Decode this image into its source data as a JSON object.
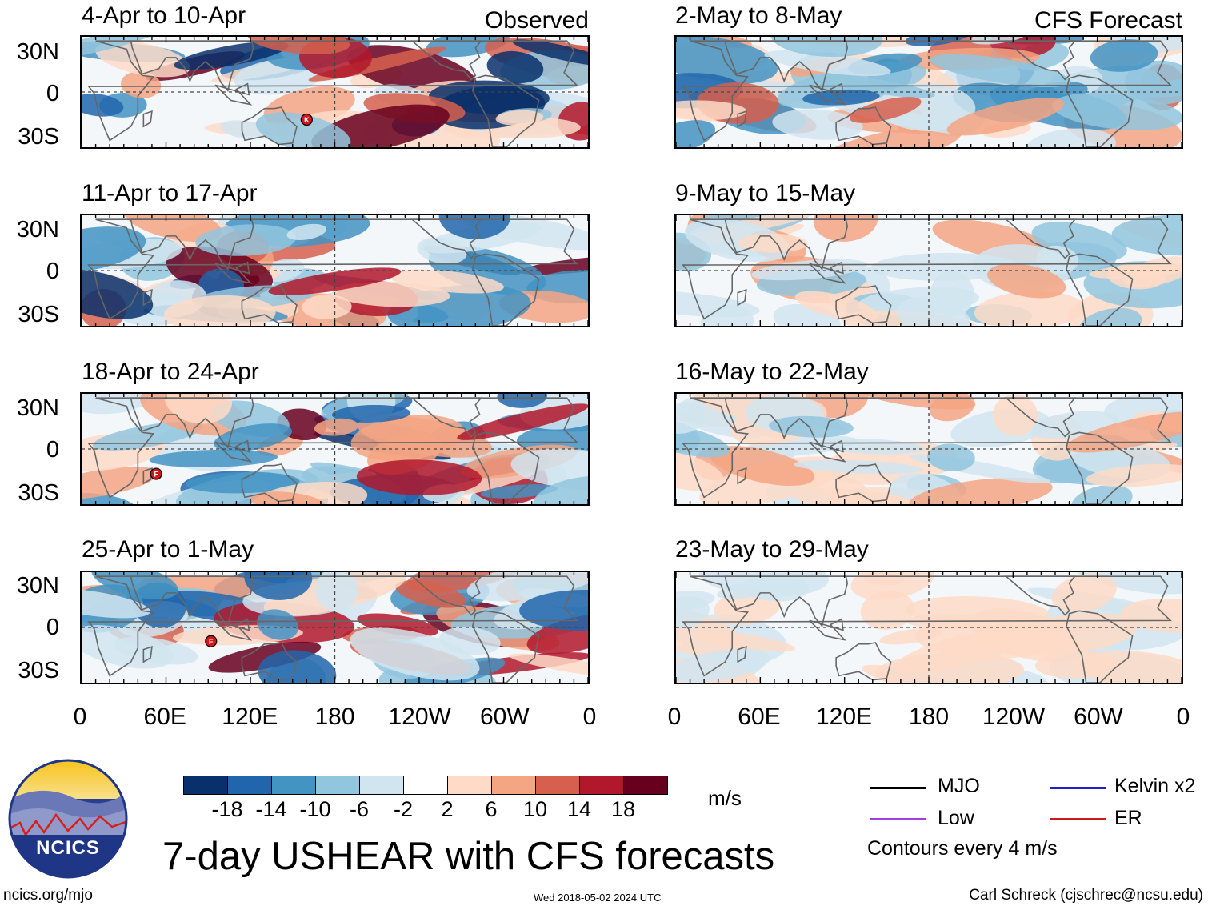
{
  "chart_data": {
    "type": "heatmap",
    "title": "7-day USHEAR with CFS forecasts",
    "variable": "USHEAR",
    "units": "m/s",
    "columns": [
      {
        "label": "Observed",
        "panels": [
          "4-Apr to 10-Apr",
          "11-Apr to 17-Apr",
          "18-Apr to 24-Apr",
          "25-Apr to 1-May"
        ]
      },
      {
        "label": "CFS Forecast",
        "panels": [
          "2-May to 8-May",
          "9-May to 15-May",
          "16-May to 22-May",
          "23-May to 29-May"
        ]
      }
    ],
    "y_ticks": [
      "30N",
      "0",
      "30S"
    ],
    "x_ticks": [
      "0",
      "60E",
      "120E",
      "180",
      "120W",
      "60W",
      "0"
    ],
    "colorbar": {
      "levels": [
        "-18",
        "-14",
        "-10",
        "-6",
        "-2",
        "2",
        "6",
        "10",
        "14",
        "18"
      ],
      "colors": [
        "#08306b",
        "#2166ac",
        "#4393c3",
        "#92c5de",
        "#d1e5f0",
        "#ffffff",
        "#fddbc7",
        "#f4a582",
        "#d6604d",
        "#b2182b",
        "#67001f"
      ]
    },
    "storm_markers": [
      {
        "panel": "4-Apr to 10-Apr",
        "letter": "K"
      },
      {
        "panel": "18-Apr to 24-Apr",
        "letter": "F"
      },
      {
        "panel": "25-Apr to 1-May",
        "letter": "F"
      }
    ],
    "contours_note": "Contours every 4 m/s",
    "legend": [
      {
        "label": "MJO",
        "color": "#000000"
      },
      {
        "label": "Kelvin x2",
        "color": "#1f1fd0"
      },
      {
        "label": "Low",
        "color": "#a040e0"
      },
      {
        "label": "ER",
        "color": "#d01818"
      }
    ]
  },
  "footer": {
    "org": "NCICS",
    "url": "ncics.org/mjo",
    "timestamp": "Wed 2018-05-02 2024 UTC",
    "author": "Carl Schreck (cjschrec@ncsu.edu)"
  }
}
